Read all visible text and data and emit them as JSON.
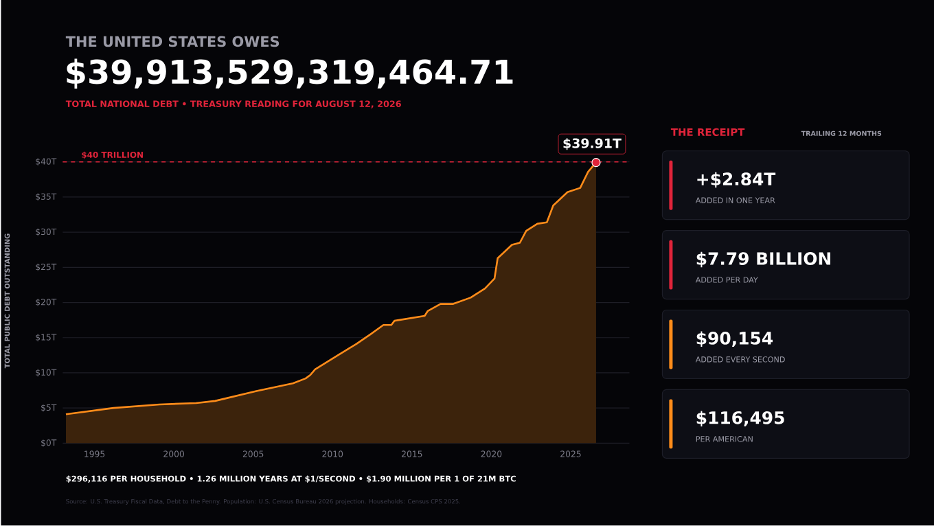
{
  "chart_data": [
    {
      "type": "area",
      "title": "THE UNITED STATES OWES",
      "subtitle": "$39,913,529,319,464.71",
      "ylabel": "TOTAL PUBLIC DEBT OUTSTANDING",
      "x": [
        1993.2,
        1996.2,
        1999.1,
        2001.4,
        2002.6,
        2005.2,
        2007.5,
        2008.3,
        2008.6,
        2008.9,
        2010.4,
        2011.5,
        2012.4,
        2013.2,
        2013.7,
        2013.9,
        2015.8,
        2016.0,
        2016.8,
        2017.6,
        2018.7,
        2019.6,
        2020.2,
        2020.4,
        2021.3,
        2021.8,
        2022.2,
        2022.9,
        2023.5,
        2023.9,
        2024.8,
        2025.6,
        2026.1,
        2026.6
      ],
      "series": [
        {
          "color": "#ff8c1a",
          "values": [
            4.1,
            5.0,
            5.5,
            5.7,
            6.0,
            7.4,
            8.5,
            9.2,
            9.7,
            10.5,
            12.6,
            14.1,
            15.5,
            16.8,
            16.8,
            17.4,
            18.1,
            18.8,
            19.8,
            19.8,
            20.7,
            22.0,
            23.4,
            26.3,
            28.2,
            28.5,
            30.2,
            31.2,
            31.4,
            33.8,
            35.7,
            36.3,
            38.6,
            39.91
          ]
        }
      ],
      "xlim": [
        1993,
        2028.7
      ],
      "ylim": [
        0,
        40.5
      ],
      "xticks": [
        1995,
        2000,
        2005,
        2010,
        2015,
        2020,
        2025
      ],
      "yticks": [
        {
          "value": 0,
          "label": "$0T"
        },
        {
          "value": 5,
          "label": "$5T"
        },
        {
          "value": 10,
          "label": "$10T"
        },
        {
          "value": 15,
          "label": "$15T"
        },
        {
          "value": 20,
          "label": "$20T"
        },
        {
          "value": 25,
          "label": "$25T"
        },
        {
          "value": 30,
          "label": "$30T"
        },
        {
          "value": 35,
          "label": "$35T"
        },
        {
          "value": 40,
          "label": "$40T"
        }
      ],
      "grid": "y",
      "marker": "none",
      "line_style": "solid",
      "ref_lines": [
        {
          "axis": "y",
          "value": 40,
          "label": "$40 TRILLION",
          "color": "#e0243a",
          "line_style": "dashed"
        }
      ],
      "annotations": [
        "TOTAL NATIONAL DEBT  •  TREASURY READING FOR AUGUST 12, 2026",
        "$296,116 PER HOUSEHOLD  •  1.26 MILLION YEARS AT $1/SECOND  •  $1.90 MILLION PER 1 OF 21M BTC",
        "Source: U.S. Treasury Fiscal Data, Debt to the Penny. Population: U.S. Census Bureau 2026 projection. Households: Census CPS 2025.",
        {
          "text": "$39.91T",
          "x": 2026.6,
          "y": 39.91
        }
      ]
    },
    {
      "type": "other",
      "title": "THE RECEIPT",
      "subtitle": "TRAILING 12 MONTHS",
      "annotations": [
        "+$2.84T",
        "ADDED IN ONE YEAR",
        "$7.79 BILLION",
        "ADDED PER DAY",
        "$90,154",
        "ADDED EVERY SECOND",
        "$116,495",
        "PER AMERICAN"
      ]
    }
  ]
}
